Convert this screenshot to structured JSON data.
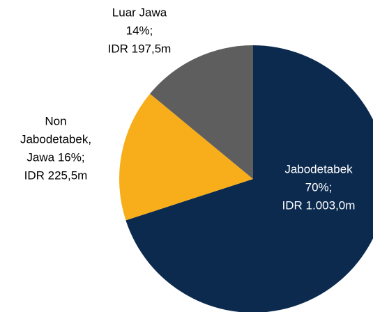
{
  "chart_data": {
    "type": "pie",
    "labels": [
      [
        "Jabodetabek",
        "70%;",
        "IDR 1.003,0m"
      ],
      [
        "Non",
        "Jabodetabek,",
        "Jawa 16%;",
        "IDR 225,5m"
      ],
      [
        "Luar Jawa",
        "14%;",
        "IDR 197,5m"
      ]
    ],
    "values": [
      70,
      16,
      14
    ],
    "colors": [
      "#0b2a4e",
      "#f8ae1b",
      "#5e5e5e"
    ],
    "label_colors": [
      "#ffffff",
      "#000000",
      "#000000"
    ]
  }
}
